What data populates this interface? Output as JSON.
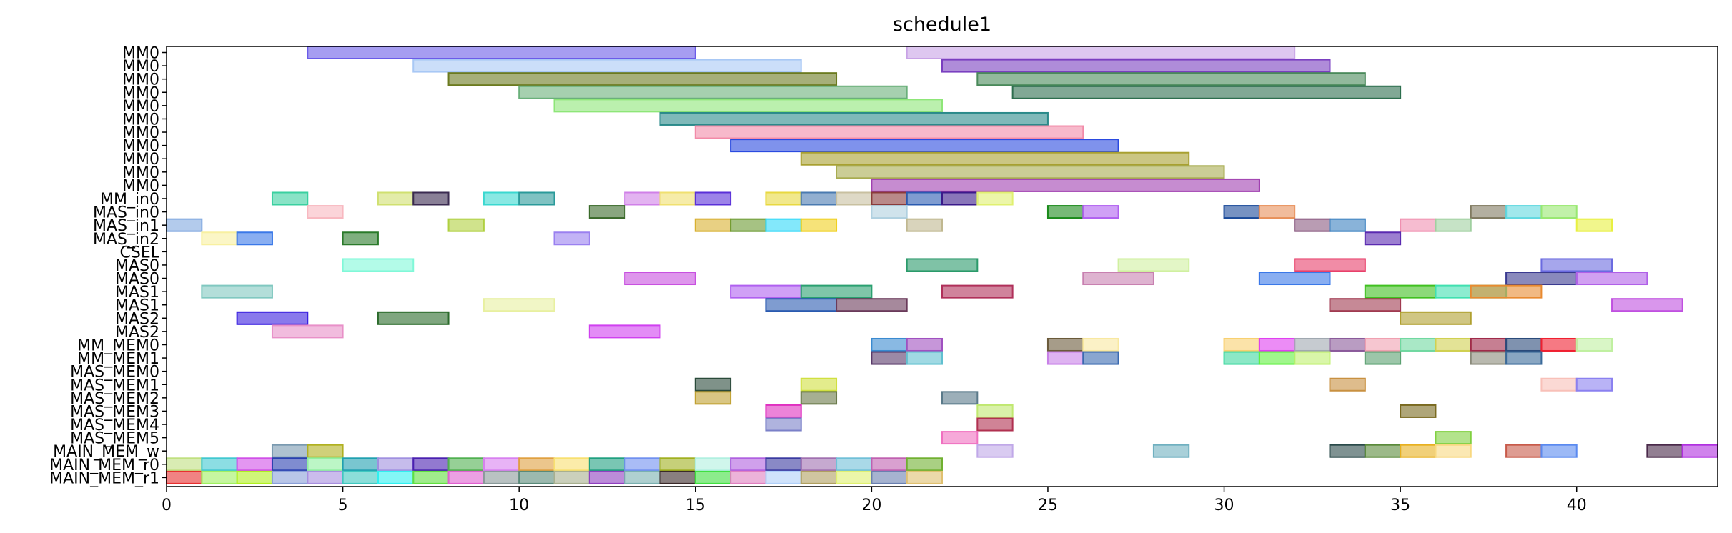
{
  "chart_data": {
    "type": "gantt",
    "title": "schedule1",
    "xlabel": "",
    "ylabel": "",
    "xlim": [
      0,
      44
    ],
    "xticks": [
      0,
      5,
      10,
      15,
      20,
      25,
      30,
      35,
      40
    ],
    "grid": false,
    "rows": [
      "MM0",
      "MM0",
      "MM0",
      "MM0",
      "MM0",
      "MM0",
      "MM0",
      "MM0",
      "MM0",
      "MM0",
      "MM0",
      "MM_in0",
      "MAS_in0",
      "MAS_in1",
      "MAS_in2",
      "CSEL",
      "MAS0",
      "MAS0",
      "MAS1",
      "MAS1",
      "MAS2",
      "MAS2",
      "MM_MEM0",
      "MM_MEM1",
      "MAS_MEM0",
      "MAS_MEM1",
      "MAS_MEM2",
      "MAS_MEM3",
      "MAS_MEM4",
      "MAS_MEM5",
      "MAIN_MEM_w",
      "MAIN_MEM_r0",
      "MAIN_MEM_r1"
    ],
    "tasks": [
      [
        0,
        4,
        15,
        "#6a5be8"
      ],
      [
        0,
        21,
        32,
        "#c8a2e6"
      ],
      [
        1,
        7,
        18,
        "#a8c8f5"
      ],
      [
        1,
        22,
        33,
        "#7a3fc0"
      ],
      [
        2,
        8,
        19,
        "#6b7a1f"
      ],
      [
        2,
        23,
        34,
        "#4a8a5a"
      ],
      [
        3,
        10,
        21,
        "#6ab07a"
      ],
      [
        3,
        24,
        35,
        "#2d6e4e"
      ],
      [
        4,
        11,
        22,
        "#8ee678"
      ],
      [
        5,
        14,
        25,
        "#2a8a8a"
      ],
      [
        6,
        15,
        26,
        "#f28aa8"
      ],
      [
        7,
        16,
        27,
        "#2a4ae0"
      ],
      [
        8,
        18,
        29,
        "#a8a030"
      ],
      [
        9,
        19,
        30,
        "#a8ac50"
      ],
      [
        10,
        20,
        31,
        "#a040b0"
      ],
      [
        11,
        3,
        4,
        "#3ad0a0"
      ],
      [
        11,
        6,
        7,
        "#d0e070"
      ],
      [
        11,
        7,
        8,
        "#3a2a50"
      ],
      [
        11,
        9,
        10,
        "#3ad8d0"
      ],
      [
        11,
        10,
        11,
        "#2a9a9a"
      ],
      [
        11,
        13,
        14,
        "#d080e8"
      ],
      [
        11,
        14,
        15,
        "#f0e070"
      ],
      [
        11,
        15,
        16,
        "#5a30d8"
      ],
      [
        11,
        17,
        18,
        "#e8d840"
      ],
      [
        11,
        18,
        19,
        "#4a7ab0"
      ],
      [
        11,
        19,
        20,
        "#c8c0a0"
      ],
      [
        11,
        20,
        21,
        "#8a3a3a"
      ],
      [
        11,
        21,
        22,
        "#2a5ab0"
      ],
      [
        11,
        22,
        23,
        "#3a1a8a"
      ],
      [
        11,
        23,
        24,
        "#e0f070"
      ],
      [
        12,
        4,
        5,
        "#f8b8c0"
      ],
      [
        12,
        12,
        13,
        "#3a6a2a"
      ],
      [
        12,
        20,
        21,
        "#b0d0e0"
      ],
      [
        12,
        25,
        26,
        "#1a8a1a"
      ],
      [
        12,
        26,
        27,
        "#b060f0"
      ],
      [
        12,
        30,
        31,
        "#1a4a9a"
      ],
      [
        12,
        31,
        32,
        "#e8905a"
      ],
      [
        12,
        37,
        38,
        "#807a60"
      ],
      [
        12,
        38,
        39,
        "#60d8e0"
      ],
      [
        12,
        39,
        40,
        "#98e870"
      ],
      [
        13,
        0,
        1,
        "#80a8e0"
      ],
      [
        13,
        8,
        9,
        "#b0d040"
      ],
      [
        13,
        15,
        16,
        "#d8b030"
      ],
      [
        13,
        16,
        17,
        "#6a9a30"
      ],
      [
        13,
        17,
        18,
        "#30d8f8"
      ],
      [
        13,
        18,
        19,
        "#f0d020"
      ],
      [
        13,
        21,
        22,
        "#c0b890"
      ],
      [
        13,
        32,
        33,
        "#8a5a80"
      ],
      [
        13,
        33,
        34,
        "#3a80c0"
      ],
      [
        13,
        35,
        36,
        "#f090b0"
      ],
      [
        13,
        36,
        37,
        "#a0d0a0"
      ],
      [
        13,
        40,
        41,
        "#e8f040"
      ],
      [
        14,
        1,
        2,
        "#f8f0a0"
      ],
      [
        14,
        2,
        3,
        "#3a78e8"
      ],
      [
        14,
        5,
        6,
        "#2a7a2a"
      ],
      [
        14,
        11,
        12,
        "#9a80f0"
      ],
      [
        14,
        34,
        35,
        "#5a2ab0"
      ],
      [
        16,
        5,
        7,
        "#80f8d8"
      ],
      [
        16,
        21,
        23,
        "#2a9a6a"
      ],
      [
        16,
        27,
        29,
        "#d0f0a0"
      ],
      [
        16,
        32,
        34,
        "#e8406a"
      ],
      [
        16,
        39,
        41,
        "#6a6ae0"
      ],
      [
        17,
        13,
        15,
        "#c850e0"
      ],
      [
        17,
        26,
        28,
        "#c880b0"
      ],
      [
        17,
        31,
        33,
        "#3a78e8"
      ],
      [
        17,
        38,
        40,
        "#3a3a90"
      ],
      [
        17,
        40,
        42,
        "#b060e8"
      ],
      [
        18,
        1,
        3,
        "#80c8c0"
      ],
      [
        18,
        16,
        18,
        "#b060f0"
      ],
      [
        18,
        18,
        20,
        "#2aa070"
      ],
      [
        18,
        22,
        24,
        "#b0305a"
      ],
      [
        18,
        34,
        36,
        "#40c020"
      ],
      [
        18,
        36,
        38,
        "#40e0b0"
      ],
      [
        18,
        37,
        39,
        "#e88a30"
      ],
      [
        19,
        9,
        11,
        "#e8f0a0"
      ],
      [
        19,
        17,
        19,
        "#2a5ab0"
      ],
      [
        19,
        19,
        21,
        "#6a3a5a"
      ],
      [
        19,
        33,
        35,
        "#a03a50"
      ],
      [
        19,
        41,
        43,
        "#c050e0"
      ],
      [
        20,
        2,
        4,
        "#3a20e0"
      ],
      [
        20,
        6,
        8,
        "#2a6a2a"
      ],
      [
        20,
        35,
        37,
        "#b0a030"
      ],
      [
        21,
        3,
        5,
        "#e890c8"
      ],
      [
        21,
        12,
        14,
        "#d040f0"
      ],
      [
        22,
        20,
        21,
        "#3a8ad0"
      ],
      [
        22,
        21,
        22,
        "#a050c0"
      ],
      [
        22,
        25,
        26,
        "#6a5a3a"
      ],
      [
        22,
        26,
        27,
        "#f8e8a0"
      ],
      [
        22,
        30,
        31,
        "#f8d070"
      ],
      [
        22,
        31,
        32,
        "#e040f0"
      ],
      [
        22,
        32,
        33,
        "#a0a8b0"
      ],
      [
        22,
        33,
        34,
        "#8a5a9a"
      ],
      [
        22,
        34,
        35,
        "#f0a0b0"
      ],
      [
        22,
        35,
        36,
        "#70d8a0"
      ],
      [
        22,
        36,
        37,
        "#d0d050"
      ],
      [
        22,
        37,
        38,
        "#a02a4a"
      ],
      [
        22,
        38,
        39,
        "#2a4a7a"
      ],
      [
        22,
        39,
        40,
        "#f02030"
      ],
      [
        22,
        40,
        41,
        "#c0f0a0"
      ],
      [
        23,
        20,
        21,
        "#5a3a6a"
      ],
      [
        23,
        21,
        22,
        "#60c0d0"
      ],
      [
        23,
        25,
        26,
        "#c880e8"
      ],
      [
        23,
        26,
        27,
        "#3a6ab0"
      ],
      [
        23,
        30,
        31,
        "#40d8a0"
      ],
      [
        23,
        31,
        32,
        "#60f040"
      ],
      [
        23,
        32,
        33,
        "#c0f070"
      ],
      [
        23,
        34,
        35,
        "#5aa070"
      ],
      [
        23,
        37,
        38,
        "#8a8a7a"
      ],
      [
        23,
        38,
        39,
        "#3a6a9a"
      ],
      [
        25,
        15,
        16,
        "#2a4a3a"
      ],
      [
        25,
        18,
        19,
        "#d0e040"
      ],
      [
        25,
        33,
        34,
        "#c89040"
      ],
      [
        25,
        39,
        40,
        "#f8c0b8"
      ],
      [
        25,
        40,
        41,
        "#8a80f0"
      ],
      [
        26,
        15,
        16,
        "#c0a030"
      ],
      [
        26,
        18,
        19,
        "#6a7a4a"
      ],
      [
        26,
        22,
        23,
        "#5a7a8a"
      ],
      [
        27,
        17,
        18,
        "#e030c0"
      ],
      [
        27,
        23,
        24,
        "#c0e870"
      ],
      [
        27,
        35,
        36,
        "#7a6a20"
      ],
      [
        28,
        17,
        18,
        "#7a80c8"
      ],
      [
        28,
        23,
        24,
        "#b03050"
      ],
      [
        29,
        22,
        23,
        "#f070c0"
      ],
      [
        29,
        36,
        37,
        "#80d040"
      ],
      [
        30,
        3,
        4,
        "#7a9ab0"
      ],
      [
        30,
        4,
        5,
        "#b0b020"
      ],
      [
        30,
        23,
        24,
        "#c0a8e8"
      ],
      [
        30,
        28,
        29,
        "#70b0c0"
      ],
      [
        30,
        33,
        34,
        "#2a4a4a"
      ],
      [
        30,
        34,
        35,
        "#5a8a3a"
      ],
      [
        30,
        35,
        36,
        "#e8b020"
      ],
      [
        30,
        36,
        37,
        "#f8d880"
      ],
      [
        30,
        38,
        39,
        "#c85a4a"
      ],
      [
        30,
        39,
        40,
        "#5a8af0"
      ],
      [
        30,
        42,
        43,
        "#4a2a4a"
      ],
      [
        30,
        43,
        44,
        "#b030e0"
      ],
      [
        31,
        0,
        1,
        "#c0e080"
      ],
      [
        31,
        1,
        2,
        "#40c8d0"
      ],
      [
        31,
        2,
        3,
        "#d050e8"
      ],
      [
        31,
        3,
        4,
        "#2a40b0"
      ],
      [
        31,
        4,
        5,
        "#90f0a0"
      ],
      [
        31,
        5,
        6,
        "#20a0b0"
      ],
      [
        31,
        6,
        7,
        "#a090e0"
      ],
      [
        31,
        7,
        8,
        "#4a20b0"
      ],
      [
        31,
        8,
        9,
        "#50b050"
      ],
      [
        31,
        9,
        10,
        "#d880f0"
      ],
      [
        31,
        10,
        11,
        "#e0a040"
      ],
      [
        31,
        11,
        12,
        "#f8e070"
      ],
      [
        31,
        12,
        13,
        "#20a080"
      ],
      [
        31,
        13,
        14,
        "#7090f0"
      ],
      [
        31,
        14,
        15,
        "#a0b020"
      ],
      [
        31,
        15,
        16,
        "#b0f0e0"
      ],
      [
        31,
        16,
        17,
        "#b060e0"
      ],
      [
        31,
        17,
        18,
        "#3a3aa0"
      ],
      [
        31,
        18,
        19,
        "#a070b0"
      ],
      [
        31,
        19,
        20,
        "#70c0d8"
      ],
      [
        31,
        20,
        21,
        "#c060b0"
      ],
      [
        31,
        21,
        22,
        "#70b030"
      ],
      [
        32,
        0,
        1,
        "#e83030"
      ],
      [
        32,
        1,
        2,
        "#a0f060"
      ],
      [
        32,
        2,
        3,
        "#b0f020"
      ],
      [
        32,
        3,
        4,
        "#8aa0d8"
      ],
      [
        32,
        4,
        5,
        "#a890e0"
      ],
      [
        32,
        5,
        6,
        "#40c8c0"
      ],
      [
        32,
        6,
        7,
        "#30f0f0"
      ],
      [
        32,
        7,
        8,
        "#60e040"
      ],
      [
        32,
        8,
        9,
        "#e060d0"
      ],
      [
        32,
        9,
        10,
        "#8a9a9a"
      ],
      [
        32,
        10,
        11,
        "#5a8a7a"
      ],
      [
        32,
        11,
        12,
        "#a8b090"
      ],
      [
        32,
        12,
        13,
        "#9040c0"
      ],
      [
        32,
        13,
        14,
        "#7ab0b0"
      ],
      [
        32,
        14,
        15,
        "#3a2a2a"
      ],
      [
        32,
        15,
        16,
        "#40e040"
      ],
      [
        32,
        16,
        17,
        "#e080c0"
      ],
      [
        32,
        17,
        18,
        "#b0d0f8"
      ],
      [
        32,
        18,
        19,
        "#b0a060"
      ],
      [
        32,
        19,
        20,
        "#e0f070"
      ],
      [
        32,
        20,
        21,
        "#6a80b0"
      ],
      [
        32,
        21,
        22,
        "#e0c070"
      ]
    ]
  }
}
